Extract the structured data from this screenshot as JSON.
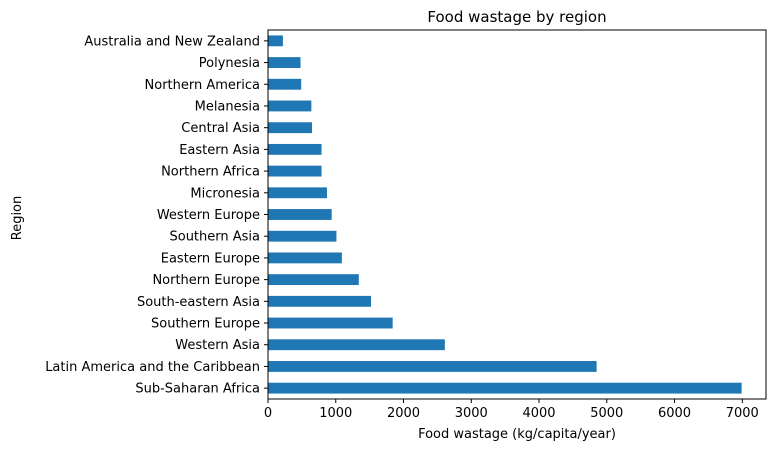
{
  "chart_data": {
    "type": "bar",
    "orientation": "horizontal",
    "title": "Food wastage by region",
    "xlabel": "Food wastage (kg/capita/year)",
    "ylabel": "Region",
    "xlim": [
      0,
      7350
    ],
    "xticks": [
      0,
      1000,
      2000,
      3000,
      4000,
      5000,
      6000,
      7000
    ],
    "grid": false,
    "bar_color": "#1f77b4",
    "categories": [
      "Sub-Saharan Africa",
      "Latin America and the Caribbean",
      "Western Asia",
      "Southern Europe",
      "South-eastern Asia",
      "Northern Europe",
      "Eastern Europe",
      "Southern Asia",
      "Western Europe",
      "Micronesia",
      "Northern Africa",
      "Eastern Asia",
      "Central Asia",
      "Melanesia",
      "Northern America",
      "Polynesia",
      "Australia and New Zealand"
    ],
    "values": [
      6990,
      4850,
      2610,
      1840,
      1520,
      1340,
      1090,
      1010,
      940,
      870,
      790,
      790,
      650,
      640,
      490,
      480,
      220
    ]
  }
}
